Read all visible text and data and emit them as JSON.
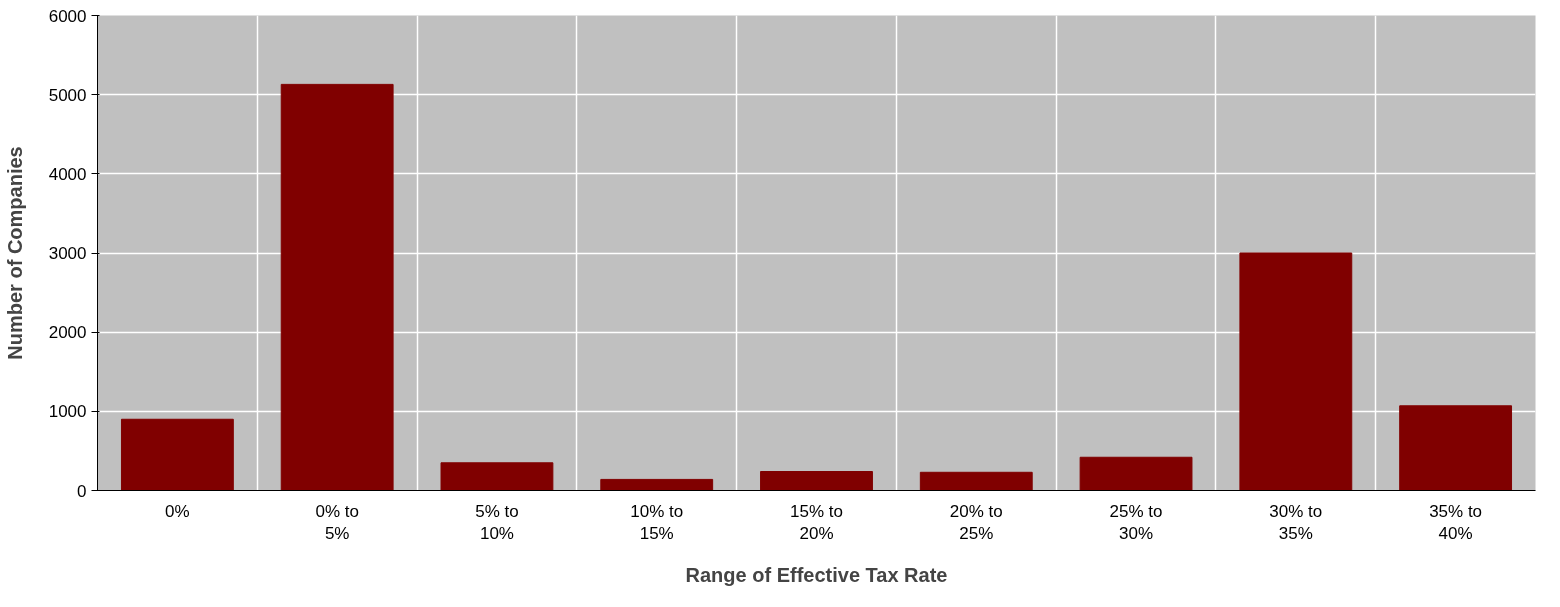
{
  "chart_data": {
    "type": "bar",
    "xlabel": "Range of Effective Tax Rate",
    "ylabel": "Number of Companies",
    "categories": [
      "0%",
      "0% to 5%",
      "5% to 10%",
      "10% to 15%",
      "15% to 20%",
      "20% to 25%",
      "25% to 30%",
      "30% to 35%",
      "35% to 40%"
    ],
    "values": [
      900,
      5130,
      350,
      140,
      240,
      230,
      420,
      3000,
      1070
    ],
    "color": "#800000",
    "ylim": [
      0,
      6000
    ],
    "yticks": [
      0,
      1000,
      2000,
      3000,
      4000,
      5000,
      6000
    ],
    "grid": true
  }
}
